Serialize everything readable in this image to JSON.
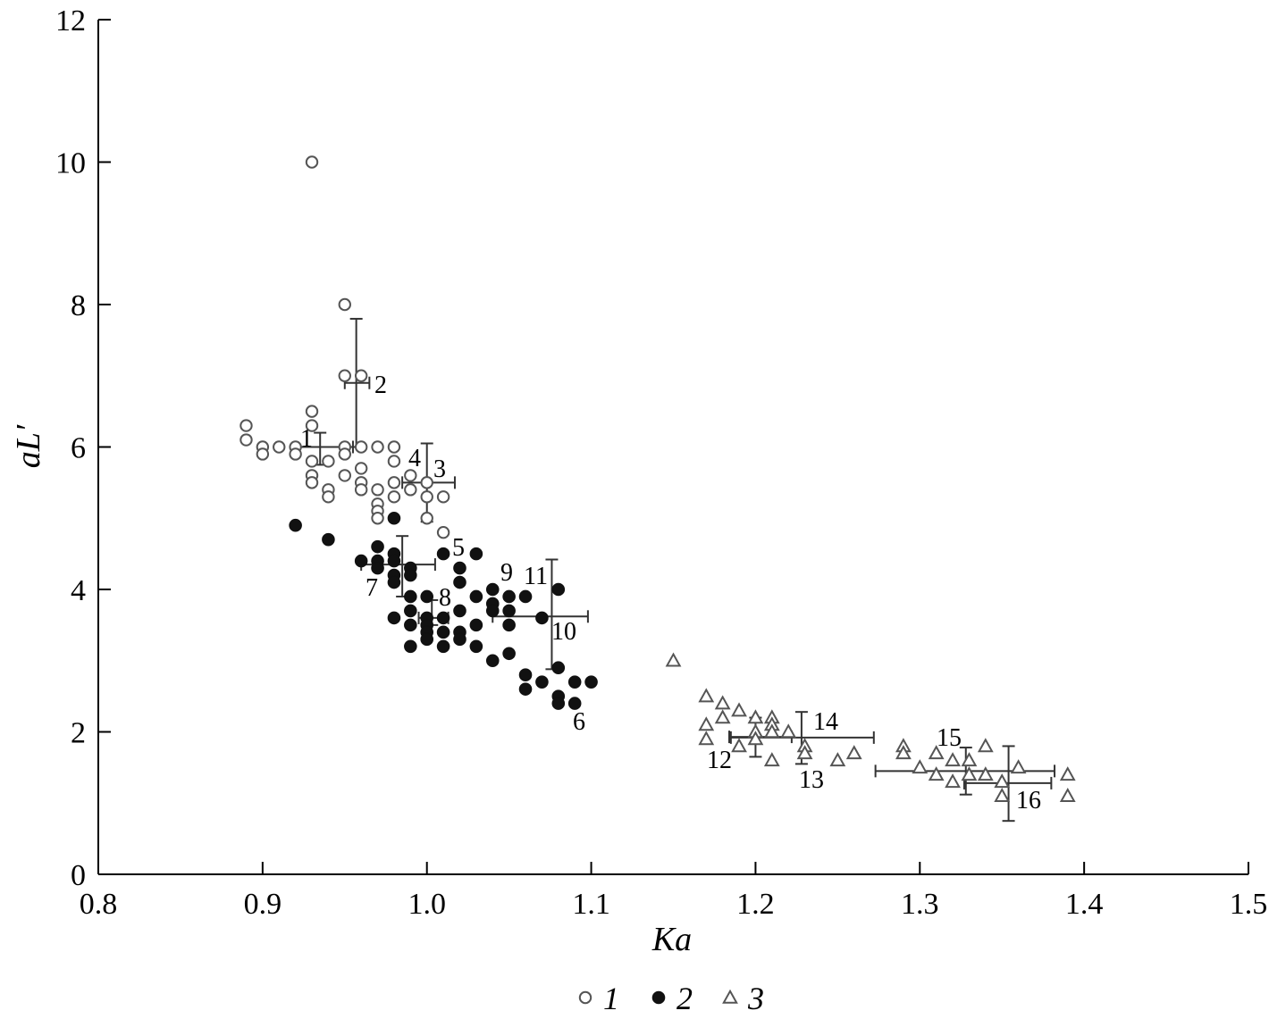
{
  "chart_data": {
    "type": "scatter",
    "xlabel": "Ka",
    "ylabel": "aL′",
    "xlim": [
      0.8,
      1.5
    ],
    "ylim": [
      0,
      12
    ],
    "xticks": [
      "0.8",
      "0.9",
      "1.0",
      "1.1",
      "1.2",
      "1.3",
      "1.4",
      "1.5"
    ],
    "yticks": [
      "0",
      "2",
      "4",
      "6",
      "8",
      "10",
      "12"
    ],
    "grid": false,
    "legend_position": "bottom-center",
    "series": [
      {
        "name": "1",
        "marker": "open-circle",
        "color": "#555555",
        "points": [
          [
            0.89,
            6.3
          ],
          [
            0.89,
            6.1
          ],
          [
            0.9,
            6.0
          ],
          [
            0.9,
            5.9
          ],
          [
            0.91,
            6.0
          ],
          [
            0.92,
            6.0
          ],
          [
            0.92,
            5.9
          ],
          [
            0.93,
            10.0
          ],
          [
            0.93,
            6.5
          ],
          [
            0.93,
            6.3
          ],
          [
            0.93,
            5.8
          ],
          [
            0.93,
            5.6
          ],
          [
            0.93,
            5.5
          ],
          [
            0.94,
            5.8
          ],
          [
            0.94,
            5.4
          ],
          [
            0.94,
            5.3
          ],
          [
            0.95,
            8.0
          ],
          [
            0.95,
            7.0
          ],
          [
            0.95,
            6.0
          ],
          [
            0.95,
            5.9
          ],
          [
            0.95,
            5.6
          ],
          [
            0.96,
            7.0
          ],
          [
            0.96,
            6.0
          ],
          [
            0.96,
            5.7
          ],
          [
            0.96,
            5.5
          ],
          [
            0.96,
            5.4
          ],
          [
            0.97,
            6.0
          ],
          [
            0.97,
            5.4
          ],
          [
            0.97,
            5.2
          ],
          [
            0.97,
            5.1
          ],
          [
            0.97,
            5.0
          ],
          [
            0.98,
            6.0
          ],
          [
            0.98,
            5.8
          ],
          [
            0.98,
            5.5
          ],
          [
            0.98,
            5.3
          ],
          [
            0.99,
            5.6
          ],
          [
            0.99,
            5.4
          ],
          [
            1.0,
            5.5
          ],
          [
            1.0,
            5.3
          ],
          [
            1.0,
            5.0
          ],
          [
            1.01,
            5.3
          ],
          [
            1.01,
            4.8
          ]
        ]
      },
      {
        "name": "2",
        "marker": "filled-circle",
        "color": "#111111",
        "points": [
          [
            0.92,
            4.9
          ],
          [
            0.94,
            4.7
          ],
          [
            0.96,
            4.4
          ],
          [
            0.97,
            4.6
          ],
          [
            0.97,
            4.4
          ],
          [
            0.97,
            4.3
          ],
          [
            0.98,
            5.0
          ],
          [
            0.98,
            4.5
          ],
          [
            0.98,
            4.4
          ],
          [
            0.98,
            4.2
          ],
          [
            0.98,
            4.1
          ],
          [
            0.98,
            3.6
          ],
          [
            0.99,
            4.3
          ],
          [
            0.99,
            4.2
          ],
          [
            0.99,
            3.9
          ],
          [
            0.99,
            3.7
          ],
          [
            0.99,
            3.5
          ],
          [
            0.99,
            3.2
          ],
          [
            1.0,
            3.9
          ],
          [
            1.0,
            3.6
          ],
          [
            1.0,
            3.5
          ],
          [
            1.0,
            3.4
          ],
          [
            1.0,
            3.3
          ],
          [
            1.01,
            4.5
          ],
          [
            1.01,
            3.6
          ],
          [
            1.01,
            3.4
          ],
          [
            1.01,
            3.2
          ],
          [
            1.02,
            4.3
          ],
          [
            1.02,
            4.1
          ],
          [
            1.02,
            3.7
          ],
          [
            1.02,
            3.4
          ],
          [
            1.02,
            3.3
          ],
          [
            1.03,
            4.5
          ],
          [
            1.03,
            3.9
          ],
          [
            1.03,
            3.5
          ],
          [
            1.03,
            3.2
          ],
          [
            1.04,
            4.0
          ],
          [
            1.04,
            3.8
          ],
          [
            1.04,
            3.7
          ],
          [
            1.04,
            3.0
          ],
          [
            1.05,
            3.9
          ],
          [
            1.05,
            3.7
          ],
          [
            1.05,
            3.5
          ],
          [
            1.05,
            3.1
          ],
          [
            1.06,
            3.9
          ],
          [
            1.06,
            2.8
          ],
          [
            1.06,
            2.6
          ],
          [
            1.07,
            3.6
          ],
          [
            1.07,
            2.7
          ],
          [
            1.08,
            4.0
          ],
          [
            1.08,
            2.9
          ],
          [
            1.08,
            2.5
          ],
          [
            1.08,
            2.4
          ],
          [
            1.09,
            2.7
          ],
          [
            1.09,
            2.4
          ],
          [
            1.1,
            2.7
          ]
        ]
      },
      {
        "name": "3",
        "marker": "open-triangle",
        "color": "#555555",
        "points": [
          [
            1.15,
            3.0
          ],
          [
            1.17,
            2.5
          ],
          [
            1.17,
            2.1
          ],
          [
            1.17,
            1.9
          ],
          [
            1.18,
            2.4
          ],
          [
            1.18,
            2.2
          ],
          [
            1.19,
            2.3
          ],
          [
            1.19,
            1.8
          ],
          [
            1.2,
            2.2
          ],
          [
            1.2,
            2.0
          ],
          [
            1.2,
            1.9
          ],
          [
            1.21,
            2.2
          ],
          [
            1.21,
            2.1
          ],
          [
            1.21,
            2.0
          ],
          [
            1.21,
            1.6
          ],
          [
            1.22,
            2.0
          ],
          [
            1.23,
            1.8
          ],
          [
            1.23,
            1.7
          ],
          [
            1.25,
            1.6
          ],
          [
            1.26,
            1.7
          ],
          [
            1.29,
            1.8
          ],
          [
            1.29,
            1.7
          ],
          [
            1.3,
            1.5
          ],
          [
            1.31,
            1.7
          ],
          [
            1.31,
            1.4
          ],
          [
            1.32,
            1.6
          ],
          [
            1.32,
            1.3
          ],
          [
            1.33,
            1.6
          ],
          [
            1.33,
            1.4
          ],
          [
            1.34,
            1.8
          ],
          [
            1.34,
            1.4
          ],
          [
            1.35,
            1.3
          ],
          [
            1.35,
            1.1
          ],
          [
            1.36,
            1.5
          ],
          [
            1.39,
            1.4
          ],
          [
            1.39,
            1.1
          ]
        ]
      }
    ],
    "error_bars": [
      {
        "label": "1",
        "x": 0.935,
        "y": 6.0,
        "xerr": [
          0.92,
          0.955
        ],
        "yerr": [
          5.75,
          6.2
        ]
      },
      {
        "label": "2",
        "x": 0.957,
        "y": 6.9,
        "xerr": [
          0.95,
          0.965
        ],
        "yerr": [
          6.0,
          7.8
        ]
      },
      {
        "label": "3",
        "x": 1.0,
        "y": 5.5,
        "xerr": [
          0.985,
          1.017
        ],
        "yerr": [
          4.95,
          6.05
        ]
      },
      {
        "label": "4",
        "x": 0.995,
        "y": 5.5
      },
      {
        "label": "5",
        "x": 1.0,
        "y": 4.33
      },
      {
        "label": "6",
        "x": 1.07,
        "y": 2.7
      },
      {
        "label": "7",
        "x": 0.985,
        "y": 4.35,
        "xerr": [
          0.96,
          1.005
        ],
        "yerr": [
          3.9,
          4.75
        ]
      },
      {
        "label": "8",
        "x": 1.003,
        "y": 3.6,
        "xerr": [
          0.995,
          1.013
        ],
        "yerr": [
          3.5,
          3.85
        ]
      },
      {
        "label": "9",
        "x": 1.047,
        "y": 3.88
      },
      {
        "label": "10",
        "x": 1.076,
        "y": 3.62,
        "xerr": [
          1.04,
          1.098
        ],
        "yerr": [
          2.88,
          4.42
        ]
      },
      {
        "label": "11",
        "x": 1.07,
        "y": 4.0
      },
      {
        "label": "12",
        "x": 1.2,
        "y": 1.93,
        "xerr": [
          1.184,
          1.222
        ],
        "yerr": [
          1.65,
          2.2
        ]
      },
      {
        "label": "13",
        "x": 1.223,
        "y": 1.9
      },
      {
        "label": "14",
        "x": 1.228,
        "y": 1.92,
        "xerr": [
          1.185,
          1.272
        ],
        "yerr": [
          1.55,
          2.28
        ]
      },
      {
        "label": "15",
        "x": 1.328,
        "y": 1.45,
        "xerr": [
          1.273,
          1.382
        ],
        "yerr": [
          1.12,
          1.78
        ]
      },
      {
        "label": "16",
        "x": 1.354,
        "y": 1.28,
        "xerr": [
          1.327,
          1.38
        ],
        "yerr": [
          0.75,
          1.8
        ]
      }
    ],
    "annotations": [
      "1",
      "2",
      "3",
      "4",
      "5",
      "6",
      "7",
      "8",
      "9",
      "10",
      "11",
      "12",
      "13",
      "14",
      "15",
      "16"
    ],
    "legend": [
      {
        "label": "1",
        "marker": "open-circle"
      },
      {
        "label": "2",
        "marker": "filled-circle"
      },
      {
        "label": "3",
        "marker": "open-triangle"
      }
    ]
  }
}
